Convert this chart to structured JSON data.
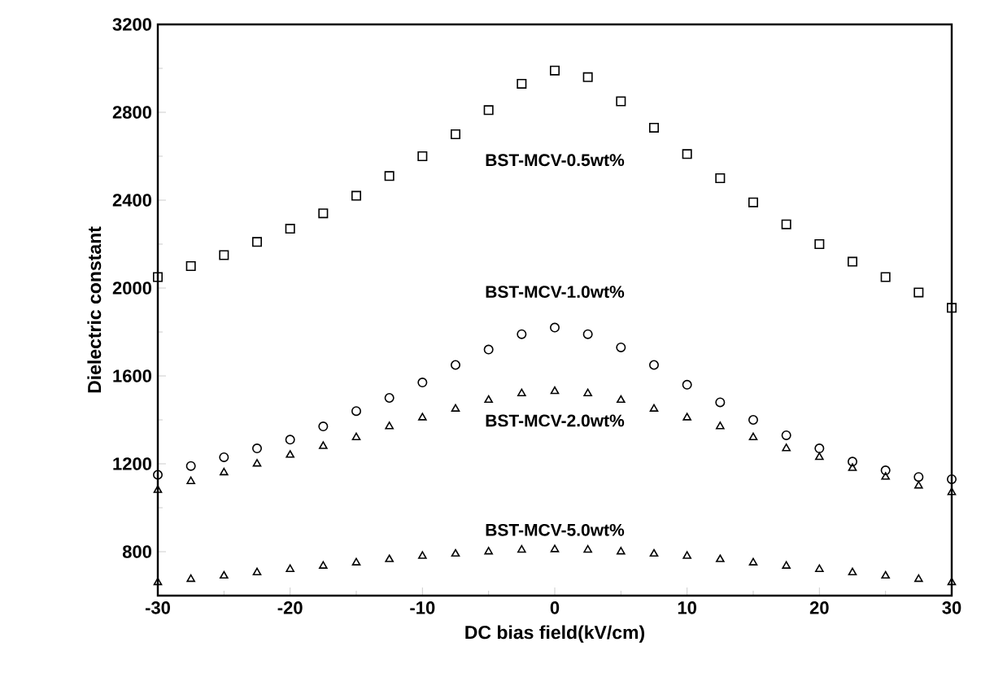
{
  "chart_data": {
    "type": "scatter",
    "xlabel": "DC bias field(kV/cm)",
    "ylabel": "Dielectric constant",
    "x": [
      -30,
      -27.5,
      -25,
      -22.5,
      -20,
      -17.5,
      -15,
      -12.5,
      -10,
      -7.5,
      -5,
      -2.5,
      0,
      2.5,
      5,
      7.5,
      10,
      12.5,
      15,
      17.5,
      20,
      22.5,
      25,
      27.5,
      30
    ],
    "series": [
      {
        "name": "BST-MCV-0.5wt%",
        "color": "#000000",
        "marker": "square",
        "values": [
          2050,
          2100,
          2150,
          2210,
          2270,
          2340,
          2420,
          2510,
          2600,
          2700,
          2810,
          2930,
          2990,
          2960,
          2850,
          2730,
          2610,
          2500,
          2390,
          2290,
          2200,
          2120,
          2050,
          1980,
          1910
        ]
      },
      {
        "name": "BST-MCV-1.0wt%",
        "color": "#000000",
        "marker": "circle",
        "values": [
          1150,
          1190,
          1230,
          1270,
          1310,
          1370,
          1440,
          1500,
          1570,
          1650,
          1720,
          1790,
          1820,
          1790,
          1730,
          1650,
          1560,
          1480,
          1400,
          1330,
          1270,
          1210,
          1170,
          1140,
          1130
        ]
      },
      {
        "name": "BST-MCV-2.0wt%",
        "color": "#000000",
        "marker": "triangle",
        "values": [
          1080,
          1120,
          1160,
          1200,
          1240,
          1280,
          1320,
          1370,
          1410,
          1450,
          1490,
          1520,
          1530,
          1520,
          1490,
          1450,
          1410,
          1370,
          1320,
          1270,
          1230,
          1180,
          1140,
          1100,
          1070
        ]
      },
      {
        "name": "BST-MCV-5.0wt%",
        "color": "#000000",
        "marker": "triangle",
        "values": [
          660,
          675,
          690,
          705,
          720,
          735,
          750,
          765,
          780,
          790,
          800,
          808,
          810,
          808,
          800,
          790,
          780,
          765,
          750,
          735,
          720,
          705,
          690,
          675,
          660
        ]
      }
    ],
    "xlim": [
      -30,
      30
    ],
    "ylim": [
      600,
      3200
    ],
    "xticks": [
      -30,
      -20,
      -10,
      0,
      10,
      20,
      30
    ],
    "yticks": [
      800,
      1200,
      1600,
      2000,
      2400,
      2800,
      3200
    ],
    "grid": false,
    "legend": false
  }
}
